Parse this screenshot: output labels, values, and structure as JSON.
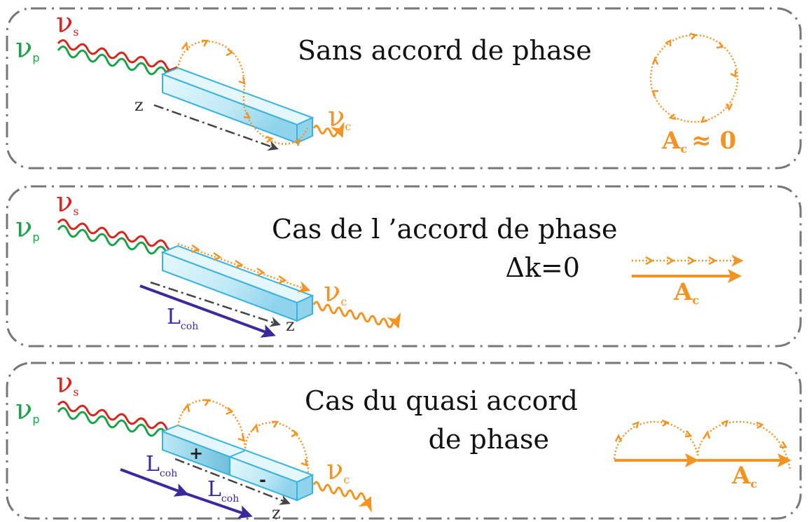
{
  "colors": {
    "pump": "#1aa34a",
    "signal": "#d7261e",
    "complementary": "#f39322",
    "length_arrow": "#3a2a9b",
    "crystal_edge": "#3ab3e0",
    "crystal_fill": "#c9eef8",
    "frame": "#777777",
    "axis": "#444444"
  },
  "labels": {
    "nu": "ν",
    "sub_s": "s",
    "sub_p": "p",
    "sub_c": "c",
    "z": "z",
    "A": "A",
    "L": "L",
    "sub_coh": "coh"
  },
  "panels": [
    {
      "title_lines": [
        "Sans accord de phase"
      ],
      "amplitude_text": "≈ 0"
    },
    {
      "title_lines": [
        "Cas de l ’accord de phase",
        "Δk=0"
      ]
    },
    {
      "title_lines": [
        "Cas du quasi accord",
        "de phase"
      ],
      "domain_signs": [
        "+",
        "-"
      ]
    }
  ]
}
